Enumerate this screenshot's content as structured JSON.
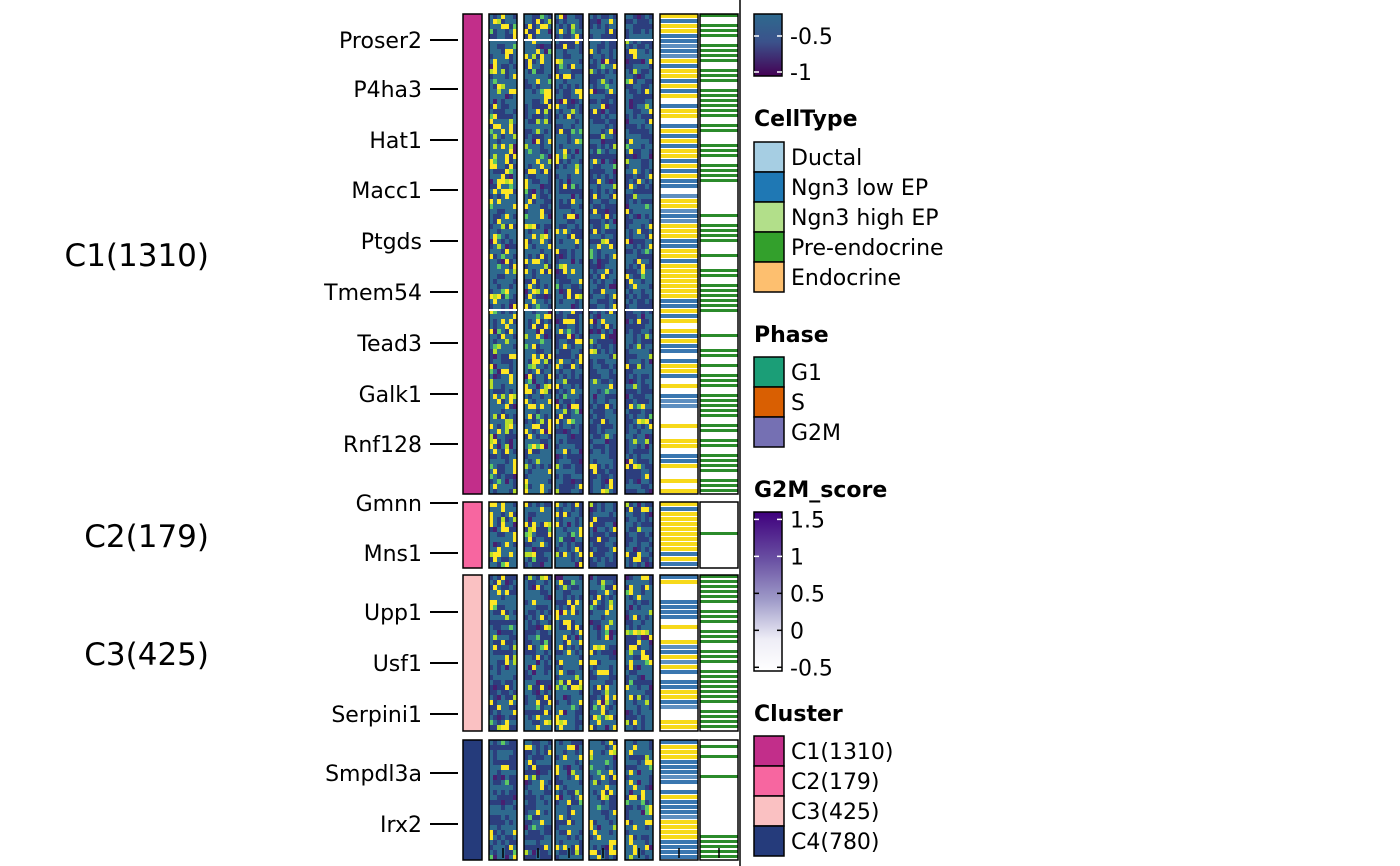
{
  "chart_data": {
    "type": "heatmap",
    "clusters": [
      {
        "name": "C1(1310)",
        "color": "#C22E8A",
        "label": "C1(1310)",
        "genes": [
          "Proser2",
          "P4ha3",
          "Hat1",
          "Macc1",
          "Ptgds",
          "Tmem54",
          "Tead3",
          "Galk1",
          "Rnf128"
        ]
      },
      {
        "name": "C2(179)",
        "color": "#F766A0",
        "label": "C2(179)",
        "genes": [
          "Gmnn",
          "Mns1"
        ]
      },
      {
        "name": "C3(425)",
        "color": "#FAC1C2",
        "label": "C3(425)",
        "genes": [
          "Upp1",
          "Usf1",
          "Serpini1"
        ]
      },
      {
        "name": "C4(780)",
        "color": "#253B7B",
        "label": "",
        "genes": [
          "Smpdl3a",
          "Irx2"
        ]
      }
    ],
    "cell_type_columns": [
      "Ductal",
      "Ngn3 low EP",
      "Ngn3 high EP",
      "Pre-endocrine",
      "Endocrine"
    ],
    "expression_scale_visible_ticks": [
      "-0.5",
      "-1"
    ],
    "expression_colors": [
      "#440154",
      "#3B528B",
      "#21908C",
      "#5DC863",
      "#FDE725"
    ],
    "annotation_columns": [
      {
        "colors": [
          "#F7D91A",
          "#3A77B0"
        ]
      },
      {
        "colors": [
          "#2B8B2B",
          "#FFFFFF"
        ]
      }
    ],
    "legends": [
      {
        "title": "CellType",
        "items": [
          {
            "label": "Ductal",
            "color": "#A6CEE3"
          },
          {
            "label": "Ngn3 low EP",
            "color": "#1F78B4"
          },
          {
            "label": "Ngn3 high EP",
            "color": "#B2DF8A"
          },
          {
            "label": "Pre-endocrine",
            "color": "#33A02C"
          },
          {
            "label": "Endocrine",
            "color": "#FDBF6F"
          }
        ]
      },
      {
        "title": "Phase",
        "items": [
          {
            "label": "G1",
            "color": "#1B9E77"
          },
          {
            "label": "S",
            "color": "#D95F02"
          },
          {
            "label": "G2M",
            "color": "#7570B3"
          }
        ]
      },
      {
        "title": "Cluster",
        "items": [
          {
            "label": "C1(1310)",
            "color": "#C22E8A"
          },
          {
            "label": "C2(179)",
            "color": "#F766A0"
          },
          {
            "label": "C3(425)",
            "color": "#FAC1C2"
          },
          {
            "label": "C4(780)",
            "color": "#253B7B"
          }
        ]
      }
    ],
    "g2m_score": {
      "title": "G2M_score",
      "ticks": [
        "1.5",
        "1",
        "0.5",
        "0",
        "-0.5"
      ],
      "range": [
        -0.55,
        1.6
      ],
      "colors": [
        "#FFFFFF",
        "#DADAEB",
        "#9E9AC8",
        "#6A51A3",
        "#3F007D"
      ]
    }
  }
}
